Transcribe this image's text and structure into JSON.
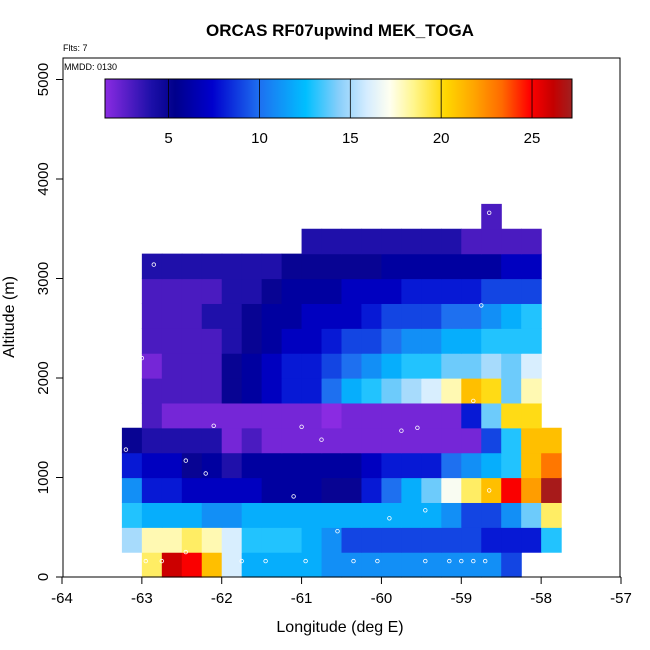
{
  "chart_data": {
    "type": "heatmap",
    "title": "ORCAS RF07upwind MEK_TOGA",
    "flts_label": "Flts: 7",
    "mmdd_label": "MMDD: 0130",
    "xlabel": "Longitude (deg E)",
    "ylabel": "Altitude (m)",
    "xlim": [
      -64,
      -57
    ],
    "ylim": [
      0,
      5200
    ],
    "x_ticks": [
      -64,
      -63,
      -62,
      -61,
      -60,
      -59,
      -58,
      -57
    ],
    "y_ticks": [
      0,
      1000,
      2000,
      3000,
      4000,
      5000
    ],
    "colorbar": {
      "range": [
        1.5,
        27.2
      ],
      "ticks": [
        5,
        10,
        15,
        20,
        25
      ]
    },
    "bin_width_deg": 0.25,
    "bin_height_m": 250,
    "rows": [
      {
        "alt_start": 0,
        "lon_start": -63.0,
        "values": [
          19,
          26,
          25,
          21,
          16,
          12,
          12,
          12,
          12,
          11,
          11,
          11,
          11,
          11,
          11,
          11,
          11,
          11,
          9
        ]
      },
      {
        "alt_start": 250,
        "lon_start": -63.25,
        "values": [
          15,
          18,
          18,
          19,
          18,
          16,
          13,
          13,
          13,
          12,
          11,
          9,
          9,
          9,
          9,
          9,
          9,
          9,
          8,
          8,
          8,
          13
        ]
      },
      {
        "alt_start": 500,
        "lon_start": -63.25,
        "values": [
          13,
          12,
          12,
          12,
          11,
          11,
          12,
          12,
          12,
          12,
          12,
          12,
          12,
          12,
          12,
          12,
          11,
          9,
          9,
          11,
          14,
          19
        ]
      },
      {
        "alt_start": 750,
        "lon_start": -63.25,
        "values": [
          11,
          8,
          8,
          7,
          7,
          7,
          7,
          6,
          6,
          6,
          5,
          5,
          8,
          10,
          12,
          14,
          17,
          19,
          21,
          25,
          22,
          27
        ]
      },
      {
        "alt_start": 1000,
        "lon_start": -63.25,
        "values": [
          8,
          7,
          7,
          5,
          6,
          4,
          6,
          6,
          6,
          6,
          6,
          6,
          7,
          8,
          8,
          8,
          10,
          11,
          12,
          13,
          21,
          23
        ]
      },
      {
        "alt_start": 1250,
        "lon_start": -63.25,
        "values": [
          5,
          4,
          4,
          4,
          4,
          2,
          3,
          2,
          2,
          2,
          2,
          2,
          2,
          2,
          2,
          2,
          2,
          2,
          9,
          13,
          21,
          21
        ]
      },
      {
        "alt_start": 1500,
        "lon_start": -63.0,
        "values": [
          3,
          2,
          2,
          2,
          2,
          2,
          2,
          2,
          2,
          1,
          2,
          2,
          2,
          2,
          2,
          2,
          8,
          14,
          20,
          20
        ]
      },
      {
        "alt_start": 1750,
        "lon_start": -63.0,
        "values": [
          3,
          3,
          3,
          3,
          5,
          6,
          7,
          8,
          8,
          10,
          12,
          13,
          14,
          15,
          16,
          18,
          21,
          20,
          14,
          18
        ]
      },
      {
        "alt_start": 2000,
        "lon_start": -63.0,
        "values": [
          2,
          3,
          3,
          3,
          5,
          6,
          7,
          8,
          8,
          9,
          10,
          11,
          12,
          13,
          13,
          14,
          14,
          15,
          14,
          16
        ]
      },
      {
        "alt_start": 2250,
        "lon_start": -63.0,
        "values": [
          3,
          3,
          3,
          3,
          4,
          5,
          6,
          7,
          7,
          8,
          9,
          9,
          10,
          11,
          11,
          12,
          12,
          13,
          13,
          13
        ]
      },
      {
        "alt_start": 2500,
        "lon_start": -63.0,
        "values": [
          3,
          3,
          3,
          4,
          4,
          5,
          6,
          6,
          7,
          7,
          7,
          8,
          9,
          9,
          9,
          10,
          10,
          11,
          12,
          13
        ]
      },
      {
        "alt_start": 2750,
        "lon_start": -63.0,
        "values": [
          3,
          3,
          3,
          3,
          4,
          4,
          5,
          6,
          6,
          6,
          7,
          7,
          7,
          8,
          8,
          8,
          8,
          9,
          9,
          9
        ]
      },
      {
        "alt_start": 3000,
        "lon_start": -63.0,
        "values": [
          4,
          4,
          4,
          4,
          4,
          4,
          4,
          5,
          5,
          5,
          5,
          5,
          6,
          6,
          6,
          6,
          6,
          6,
          7,
          7
        ]
      },
      {
        "alt_start": 3250,
        "lon_start": -61.0,
        "values": [
          4,
          4,
          4,
          4,
          4,
          4,
          4,
          4,
          3,
          3,
          3,
          3
        ]
      },
      {
        "alt_start": 3500,
        "lon_start": -58.75,
        "values": [
          3
        ]
      }
    ],
    "sample_points": [
      [
        -62.95,
        160
      ],
      [
        -62.75,
        160
      ],
      [
        -62.45,
        250
      ],
      [
        -61.75,
        160
      ],
      [
        -61.45,
        160
      ],
      [
        -60.95,
        160
      ],
      [
        -60.35,
        160
      ],
      [
        -60.05,
        160
      ],
      [
        -59.45,
        160
      ],
      [
        -59.15,
        160
      ],
      [
        -59.0,
        160
      ],
      [
        -58.85,
        160
      ],
      [
        -58.7,
        160
      ],
      [
        -60.55,
        460
      ],
      [
        -59.9,
        590
      ],
      [
        -59.45,
        670
      ],
      [
        -61.1,
        810
      ],
      [
        -58.65,
        870
      ],
      [
        -62.2,
        1040
      ],
      [
        -62.45,
        1170
      ],
      [
        -63.2,
        1280
      ],
      [
        -62.1,
        1520
      ],
      [
        -61.0,
        1510
      ],
      [
        -60.75,
        1380
      ],
      [
        -59.75,
        1470
      ],
      [
        -59.55,
        1500
      ],
      [
        -58.85,
        1770
      ],
      [
        -63.0,
        2200
      ],
      [
        -62.85,
        3140
      ],
      [
        -58.75,
        2730
      ],
      [
        -58.65,
        3660
      ]
    ]
  }
}
